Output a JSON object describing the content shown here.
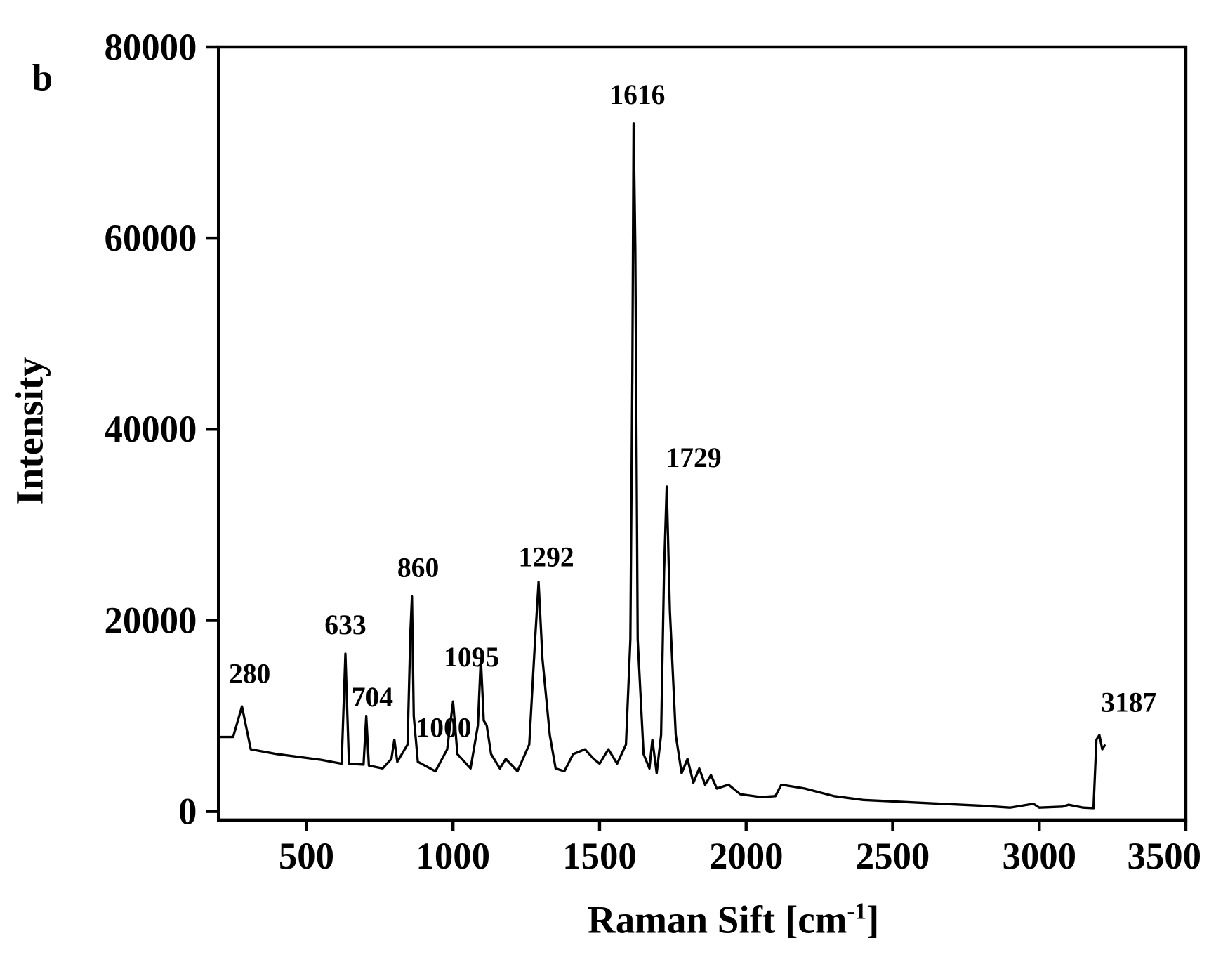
{
  "chart_data": {
    "type": "line",
    "panel_label": "b",
    "y_label": "Intensity",
    "x_label": {
      "text": "Raman Sift [cm",
      "sup": "-1",
      "tail": "]"
    },
    "xlim": [
      200,
      3500
    ],
    "ylim": [
      -900,
      80000
    ],
    "xticks": [
      500,
      1000,
      1500,
      2000,
      2500,
      3000,
      3500
    ],
    "yticks": [
      0,
      20000,
      40000,
      60000,
      80000
    ],
    "series": [
      {
        "color": "#000000",
        "x": [
          200,
          250,
          280,
          310,
          400,
          550,
          620,
          633,
          645,
          695,
          704,
          713,
          760,
          790,
          800,
          810,
          845,
          855,
          860,
          866,
          880,
          940,
          980,
          1000,
          1015,
          1060,
          1085,
          1095,
          1105,
          1115,
          1130,
          1160,
          1180,
          1220,
          1260,
          1280,
          1292,
          1305,
          1330,
          1350,
          1380,
          1410,
          1450,
          1480,
          1500,
          1530,
          1560,
          1590,
          1605,
          1612,
          1616,
          1622,
          1630,
          1650,
          1670,
          1680,
          1695,
          1710,
          1720,
          1729,
          1740,
          1760,
          1780,
          1800,
          1820,
          1840,
          1860,
          1880,
          1900,
          1940,
          1980,
          2050,
          2100,
          2120,
          2200,
          2300,
          2400,
          2600,
          2800,
          2900,
          2980,
          3000,
          3080,
          3100,
          3150,
          3185,
          3195,
          3205,
          3215,
          3225
        ],
        "values": [
          7800,
          7800,
          11000,
          6500,
          6000,
          5400,
          5000,
          16500,
          5000,
          4900,
          10000,
          4800,
          4500,
          5500,
          7500,
          5200,
          7000,
          19000,
          22500,
          10000,
          5200,
          4200,
          6500,
          11500,
          6000,
          4500,
          9000,
          16000,
          9500,
          9000,
          6000,
          4500,
          5500,
          4200,
          7000,
          18000,
          24000,
          16000,
          8000,
          4500,
          4200,
          6000,
          6500,
          5500,
          5000,
          6500,
          5000,
          7000,
          18000,
          46000,
          72000,
          59000,
          18000,
          6000,
          4500,
          7500,
          4000,
          8000,
          25000,
          34000,
          21000,
          8000,
          4000,
          5500,
          3000,
          4500,
          2800,
          3800,
          2400,
          2800,
          1800,
          1500,
          1600,
          2800,
          2400,
          1600,
          1200,
          900,
          600,
          400,
          800,
          400,
          500,
          700,
          400,
          350,
          7500,
          8000,
          6500,
          7000
        ]
      }
    ],
    "annotations": [
      {
        "text": "280",
        "x": 280,
        "y": 11000
      },
      {
        "text": "633",
        "x": 633,
        "y": 16500
      },
      {
        "text": "704",
        "x": 704,
        "y": 10000
      },
      {
        "text": "860",
        "x": 860,
        "y": 22500
      },
      {
        "text": "1000",
        "x": 1000,
        "y": 11500
      },
      {
        "text": "1095",
        "x": 1095,
        "y": 16000
      },
      {
        "text": "1292",
        "x": 1292,
        "y": 24000
      },
      {
        "text": "1616",
        "x": 1616,
        "y": 72000
      },
      {
        "text": "1729",
        "x": 1729,
        "y": 34000
      },
      {
        "text": "3187",
        "x": 3187,
        "y": 8000
      }
    ]
  }
}
